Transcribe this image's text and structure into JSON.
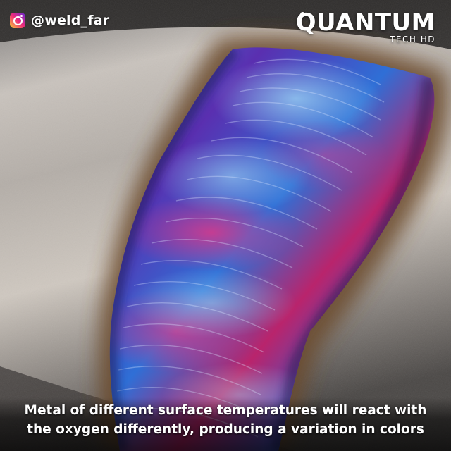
{
  "watermark": {
    "handle": "@weld_far",
    "icon": "instagram-icon",
    "brand_name": "QUANTUM",
    "brand_sub": "TECH HD"
  },
  "caption": {
    "line1": "Metal of different surface temperatures will react with",
    "line2": "the oxygen differently, producing a variation in colors"
  },
  "colors": {
    "steel": "#b7b2ac",
    "heat_tint_brown": "#6b4a2a",
    "weld_blue": "#2f6fd6",
    "weld_violet": "#6a2ea8",
    "weld_magenta": "#c0246e"
  }
}
